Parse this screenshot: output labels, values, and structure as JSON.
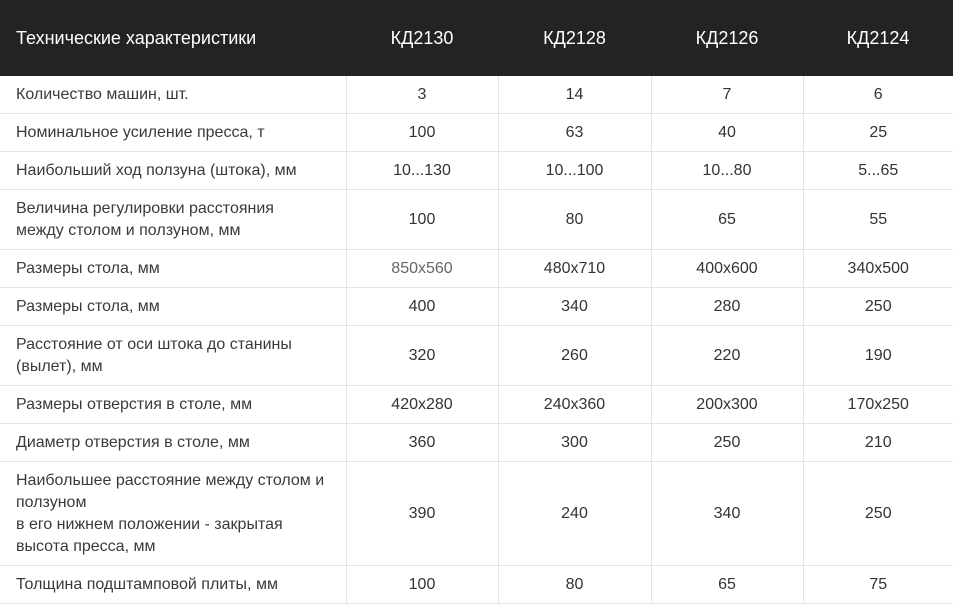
{
  "header": {
    "title": "Технические характеристики",
    "models": [
      "КД2130",
      "КД2128",
      "КД2126",
      "КД2124"
    ]
  },
  "rows": [
    {
      "label": [
        "Количество машин, шт."
      ],
      "values": [
        "3",
        "14",
        "7",
        "6"
      ]
    },
    {
      "label": [
        "Номинальное усиление пресса, т"
      ],
      "values": [
        "100",
        "63",
        "40",
        "25"
      ]
    },
    {
      "label": [
        "Наибольший ход ползуна (штока), мм"
      ],
      "values": [
        "10...130",
        "10...100",
        "10...80",
        "5...65"
      ]
    },
    {
      "label": [
        "Величина регулировки расстояния",
        "между столом и ползуном, мм"
      ],
      "values": [
        "100",
        "80",
        "65",
        "55"
      ]
    },
    {
      "label": [
        "Размеры стола, мм"
      ],
      "values": [
        "850x560",
        "480x710",
        "400x600",
        "340x500"
      ]
    },
    {
      "label": [
        "Размеры стола, мм"
      ],
      "values": [
        "400",
        "340",
        "280",
        "250"
      ]
    },
    {
      "label": [
        "Расстояние от оси штока до станины",
        "(вылет), мм"
      ],
      "values": [
        "320",
        "260",
        "220",
        "190"
      ]
    },
    {
      "label": [
        "Размеры отверстия в столе, мм"
      ],
      "values": [
        "420x280",
        "240x360",
        "200x300",
        "170x250"
      ]
    },
    {
      "label": [
        "Диаметр отверстия в столе, мм"
      ],
      "values": [
        "360",
        "300",
        "250",
        "210"
      ]
    },
    {
      "label": [
        "Наибольшее расстояние между столом и",
        "ползуном",
        "в его нижнем положении - закрытая",
        "высота пресса, мм"
      ],
      "values": [
        "390",
        "240",
        "340",
        "250"
      ]
    },
    {
      "label": [
        "Толщина подштамповой плиты, мм"
      ],
      "values": [
        "100",
        "80",
        "65",
        "75"
      ]
    }
  ]
}
